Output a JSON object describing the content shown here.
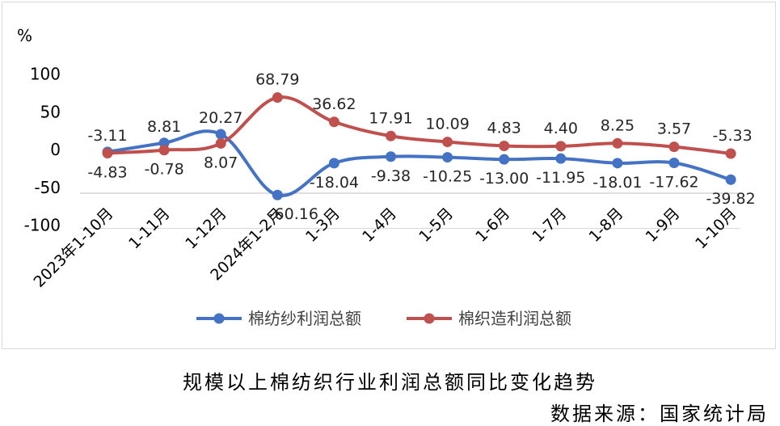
{
  "chart_data": {
    "type": "line",
    "unit": "%",
    "categories": [
      "2023年1-10月",
      "1-11月",
      "1-12月",
      "2024年1-2月",
      "1-3月",
      "1-4月",
      "1-5月",
      "1-6月",
      "1-7月",
      "1-8月",
      "1-9月",
      "1-10月"
    ],
    "yticks": [
      "100",
      "50",
      "0",
      "-50",
      "-100"
    ],
    "ylim": [
      -100,
      100
    ],
    "legend_position": "bottom",
    "grid": false,
    "series": [
      {
        "name": "棉纺纱利润总额",
        "color": "#4472c4",
        "values": [
          -3.11,
          8.81,
          20.27,
          -60.16,
          -18.04,
          -9.38,
          -10.25,
          -13.0,
          -11.95,
          -18.01,
          -17.62,
          -39.82
        ],
        "labels": [
          "-3.11",
          "8.81",
          "20.27",
          "-60.16",
          "-18.04",
          "-9.38",
          "-10.25",
          "-13.00",
          "-11.95",
          "-18.01",
          "-17.62",
          "-39.82"
        ]
      },
      {
        "name": "棉织造利润总额",
        "color": "#c0504d",
        "values": [
          -4.83,
          -0.78,
          8.07,
          68.79,
          36.62,
          17.91,
          10.09,
          4.83,
          4.4,
          8.25,
          3.57,
          -5.33
        ],
        "labels": [
          "-4.83",
          "-0.78",
          "8.07",
          "68.79",
          "36.62",
          "17.91",
          "10.09",
          "4.83",
          "4.40",
          "8.25",
          "3.57",
          "-5.33"
        ]
      }
    ]
  },
  "caption": {
    "title": "规模以上棉纺织行业利润总额同比变化趋势",
    "source": "数据来源：国家统计局"
  }
}
